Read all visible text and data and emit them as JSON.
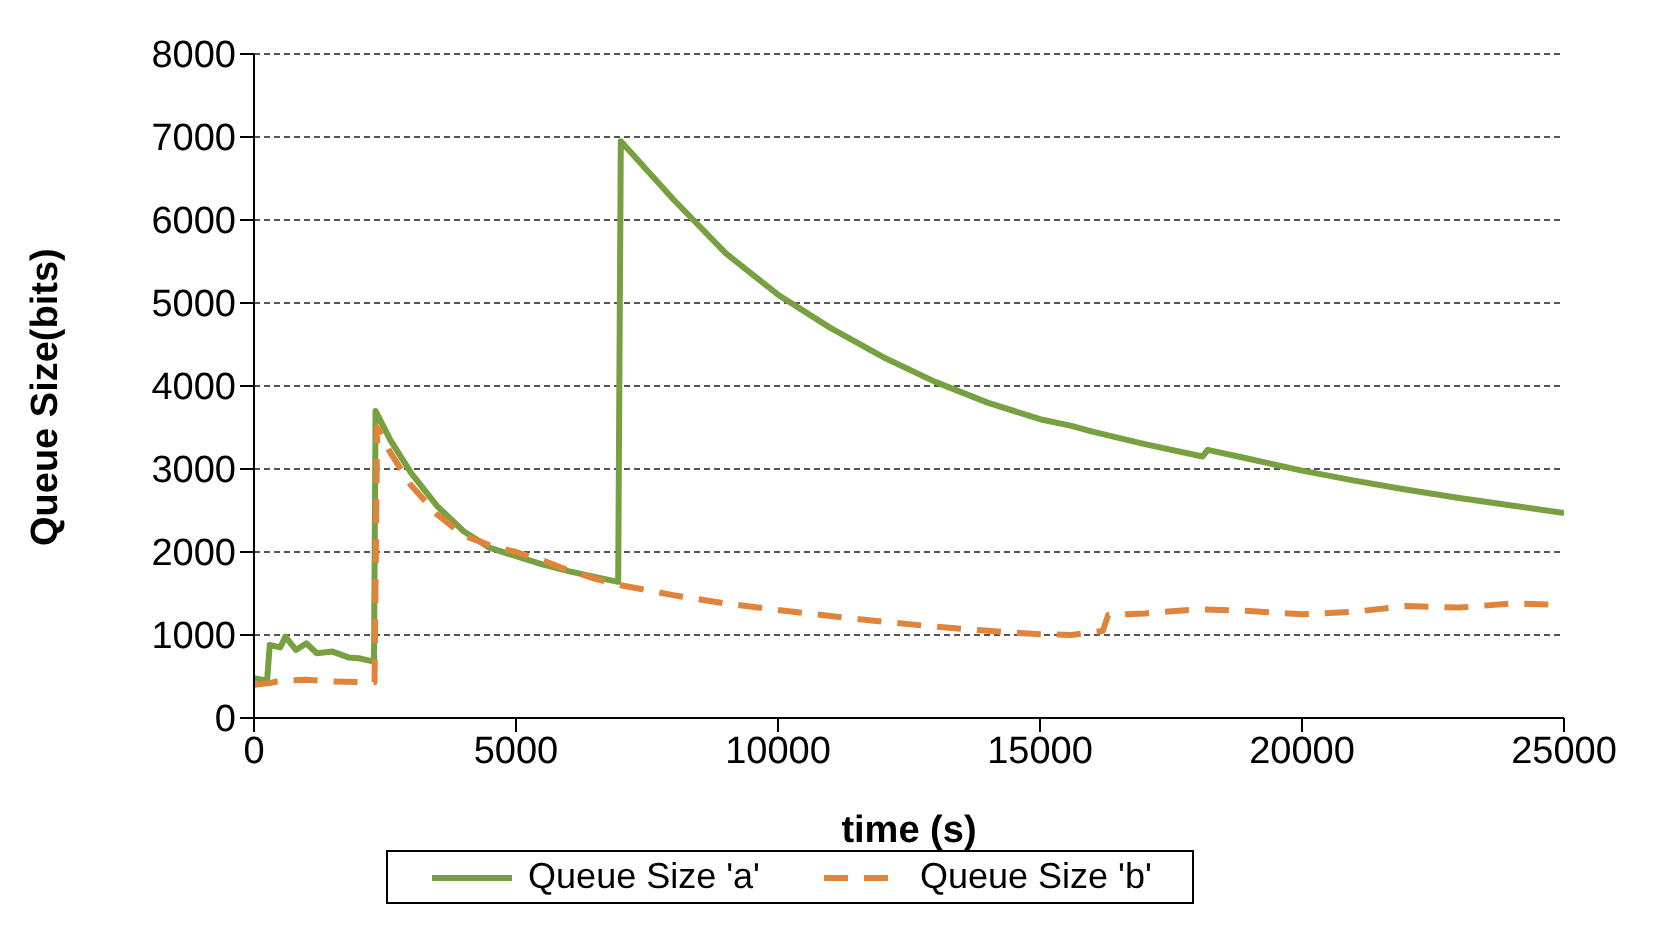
{
  "chart_data": {
    "type": "line",
    "xlabel": "time (s)",
    "ylabel": "Queue Size(bits)",
    "xlim": [
      0,
      25000
    ],
    "xticks": [
      0,
      5000,
      10000,
      15000,
      20000,
      25000
    ],
    "ylim": [
      0,
      8000
    ],
    "yticks": [
      0,
      1000,
      2000,
      3000,
      4000,
      5000,
      6000,
      7000,
      8000
    ],
    "grid": "y",
    "legend": "bottom",
    "marker": "none",
    "series": [
      {
        "name": "Queue Size 'a'",
        "color": "#77a040",
        "line_style": "solid",
        "x": [
          0,
          250,
          300,
          500,
          600,
          800,
          1000,
          1200,
          1500,
          1800,
          2000,
          2290,
          2320,
          2600,
          3000,
          3500,
          4000,
          4500,
          5000,
          5500,
          6000,
          6500,
          6950,
          7000,
          7500,
          8000,
          9000,
          10000,
          11000,
          12000,
          13000,
          14000,
          15000,
          15600,
          16000,
          17000,
          18100,
          18200,
          19000,
          20000,
          21000,
          22000,
          23000,
          24000,
          25000
        ],
        "values": [
          480,
          450,
          880,
          850,
          980,
          820,
          900,
          780,
          800,
          730,
          720,
          680,
          3700,
          3350,
          2950,
          2550,
          2250,
          2050,
          1950,
          1850,
          1770,
          1700,
          1640,
          6950,
          6600,
          6250,
          5600,
          5100,
          4700,
          4350,
          4050,
          3800,
          3600,
          3520,
          3450,
          3300,
          3150,
          3230,
          3120,
          2980,
          2860,
          2750,
          2650,
          2560,
          2470
        ]
      },
      {
        "name": "Queue Size 'b'",
        "color": "#e0843c",
        "line_style": "dashed",
        "x": [
          0,
          300,
          500,
          1000,
          1500,
          2300,
          2350,
          2600,
          3000,
          3500,
          4000,
          4500,
          5000,
          5500,
          6000,
          6500,
          7000,
          8000,
          9000,
          10000,
          11000,
          12000,
          13000,
          14000,
          15000,
          15600,
          16200,
          16300,
          17000,
          18000,
          19000,
          20000,
          21000,
          22000,
          23000,
          24000,
          25000
        ],
        "values": [
          400,
          420,
          450,
          460,
          440,
          430,
          3500,
          3200,
          2800,
          2450,
          2200,
          2080,
          2000,
          1900,
          1780,
          1680,
          1600,
          1480,
          1380,
          1300,
          1230,
          1160,
          1100,
          1050,
          1010,
          1000,
          1050,
          1240,
          1260,
          1310,
          1290,
          1250,
          1280,
          1350,
          1330,
          1380,
          1360
        ]
      }
    ]
  }
}
